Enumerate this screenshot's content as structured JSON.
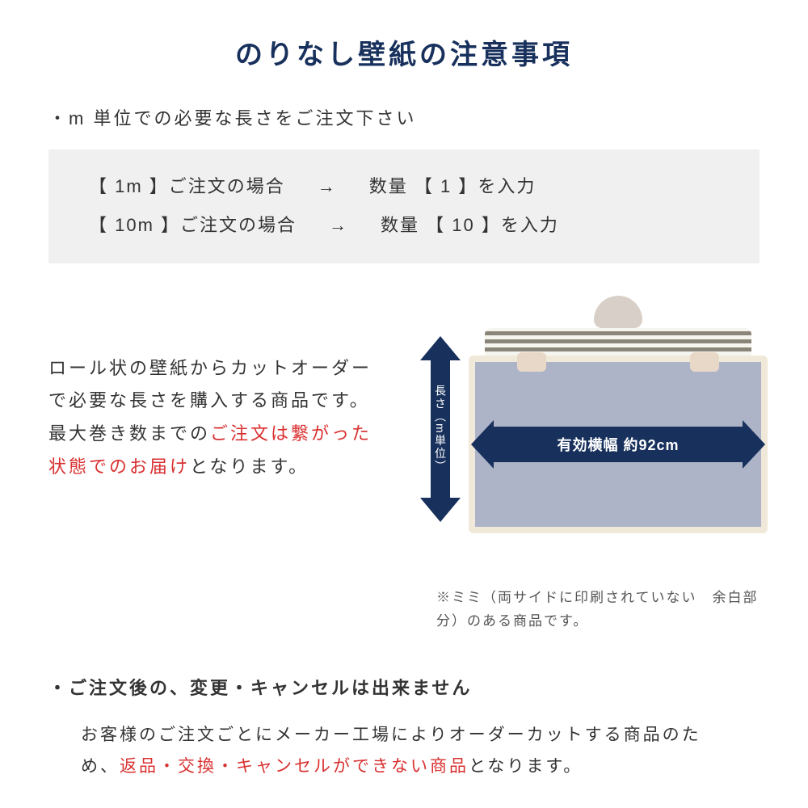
{
  "colors": {
    "title": "#17305c",
    "body_text": "#333333",
    "red_text": "#d93030",
    "box_bg": "#f0f0f0",
    "arrow_bg": "#17305c",
    "arrow_text": "#ffffff",
    "wallpaper_fill": "#aeb4c8",
    "wallpaper_border": "#f0e8d8",
    "note_text": "#555555"
  },
  "title": "のりなし壁紙の注意事項",
  "bullet1": "・m 単位での必要な長さをご注文下さい",
  "order_box": {
    "row1": {
      "left": "【  1m  】ご注文の場合",
      "arrow": "→",
      "right": "数量 【  1  】を入力"
    },
    "row2": {
      "left": "【 10m 】ご注文の場合",
      "arrow": "→",
      "right": "数量 【  10  】を入力"
    }
  },
  "middle": {
    "text_before": "ロール状の壁紙からカットオーダーで必要な長さを購入する商品です。最大巻き数までの",
    "text_red": "ご注文は繋がった状態でのお届け",
    "text_after": "となります。"
  },
  "diagram": {
    "vertical_label": "長さ（m単位）",
    "horizontal_label": "有効横幅 約92cm"
  },
  "note": "※ミミ（両サイドに印刷されていない　余白部分）のある商品です。",
  "bullet2": "・ご注文後の、変更・キャンセルは出来ません",
  "bottom": {
    "before": "お客様のご注文ごとにメーカー工場によりオーダーカットする商品のため、",
    "red": "返品・交換・キャンセルができない商品",
    "after": "となります。"
  }
}
